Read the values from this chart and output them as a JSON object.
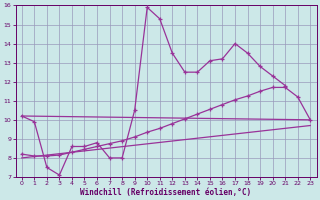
{
  "xlabel": "Windchill (Refroidissement éolien,°C)",
  "background_color": "#cce8e8",
  "grid_color": "#9999bb",
  "line_color": "#993399",
  "xlim": [
    -0.5,
    23.5
  ],
  "ylim": [
    7,
    16
  ],
  "yticks": [
    7,
    8,
    9,
    10,
    11,
    12,
    13,
    14,
    15,
    16
  ],
  "xticks": [
    0,
    1,
    2,
    3,
    4,
    5,
    6,
    7,
    8,
    9,
    10,
    11,
    12,
    13,
    14,
    15,
    16,
    17,
    18,
    19,
    20,
    21,
    22,
    23
  ],
  "line1_x": [
    0,
    1,
    2,
    3,
    4,
    5,
    6,
    7,
    8,
    9,
    10,
    11,
    12,
    13,
    14,
    15,
    16,
    17,
    18,
    19,
    20,
    21
  ],
  "line1_y": [
    10.2,
    9.9,
    7.5,
    7.1,
    8.6,
    8.6,
    8.8,
    8.0,
    8.0,
    10.5,
    15.9,
    15.3,
    13.5,
    12.5,
    12.5,
    13.1,
    13.2,
    14.0,
    13.5,
    12.8,
    12.3,
    11.8
  ],
  "line2_x": [
    0,
    23
  ],
  "line2_y": [
    10.2,
    10.0
  ],
  "line3_x": [
    0,
    23
  ],
  "line3_y": [
    8.0,
    9.7
  ],
  "line4_x": [
    0,
    1,
    2,
    3,
    4,
    5,
    6,
    7,
    8,
    9,
    10,
    11,
    12,
    13,
    14,
    15,
    16,
    17,
    18,
    19,
    20,
    21,
    22,
    23
  ],
  "line4_y": [
    8.2,
    8.1,
    8.1,
    8.15,
    8.3,
    8.45,
    8.6,
    8.75,
    8.9,
    9.1,
    9.35,
    9.55,
    9.8,
    10.05,
    10.3,
    10.55,
    10.8,
    11.05,
    11.25,
    11.5,
    11.7,
    11.7,
    11.2,
    10.0
  ]
}
